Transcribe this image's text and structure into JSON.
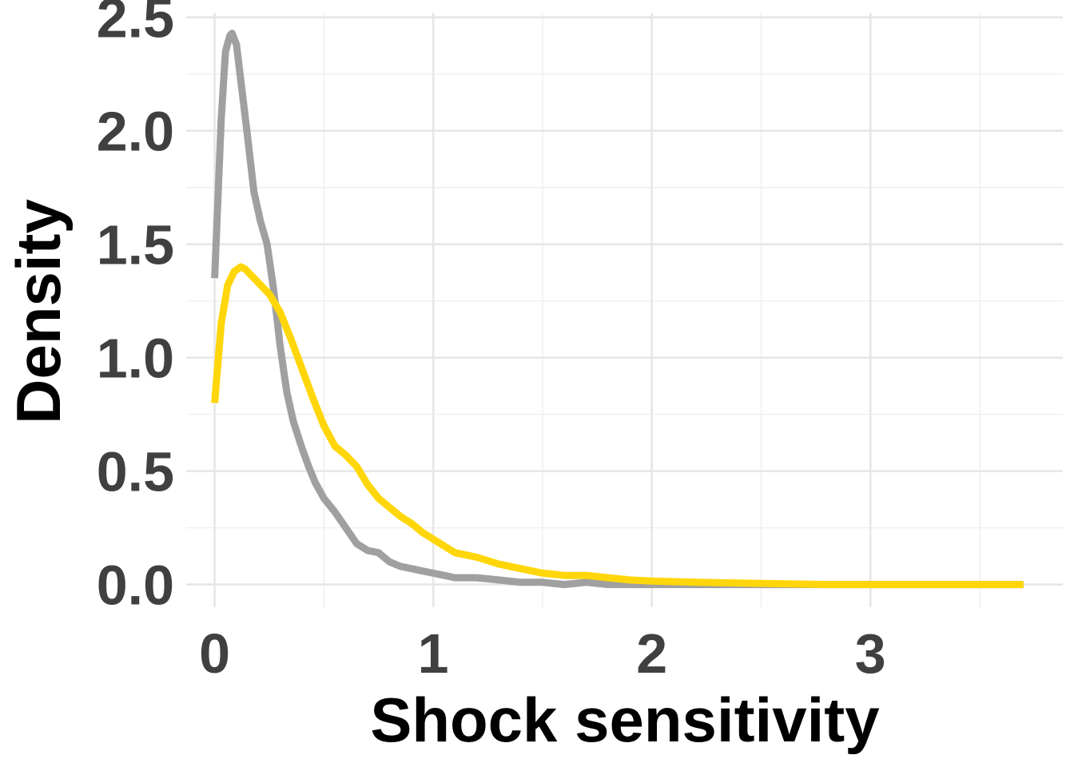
{
  "chart_data": {
    "type": "line",
    "title": "",
    "xlabel": "Shock sensitivity",
    "ylabel": "Density",
    "xlim": [
      -0.13,
      3.88
    ],
    "ylim": [
      -0.1,
      2.52
    ],
    "x_ticks": [
      0,
      1,
      2,
      3
    ],
    "x_tick_labels": [
      "0",
      "1",
      "2",
      "3"
    ],
    "x_minor_ticks": [
      0.5,
      1.5,
      2.5,
      3.5
    ],
    "y_ticks": [
      0.0,
      0.5,
      1.0,
      1.5,
      2.0,
      2.5
    ],
    "y_tick_labels": [
      "0.0",
      "0.5",
      "1.0",
      "1.5",
      "2.0",
      "2.5"
    ],
    "y_minor_ticks": [
      0.25,
      0.75,
      1.25,
      1.75,
      2.25
    ],
    "grid": true,
    "legend": "none",
    "series": [
      {
        "color": "#a0a0a0",
        "x": [
          0.0,
          0.03,
          0.05,
          0.07,
          0.08,
          0.1,
          0.12,
          0.15,
          0.18,
          0.21,
          0.24,
          0.27,
          0.3,
          0.33,
          0.36,
          0.4,
          0.43,
          0.46,
          0.5,
          0.55,
          0.6,
          0.65,
          0.7,
          0.75,
          0.8,
          0.85,
          0.9,
          0.95,
          1.0,
          1.05,
          1.1,
          1.2,
          1.3,
          1.4,
          1.5,
          1.6,
          1.7,
          1.8,
          2.0,
          2.2,
          2.5,
          2.8,
          3.1,
          3.4,
          3.7
        ],
        "y": [
          1.35,
          2.05,
          2.35,
          2.42,
          2.43,
          2.38,
          2.22,
          1.98,
          1.73,
          1.6,
          1.5,
          1.3,
          1.05,
          0.85,
          0.72,
          0.6,
          0.52,
          0.45,
          0.38,
          0.32,
          0.25,
          0.18,
          0.15,
          0.14,
          0.1,
          0.08,
          0.07,
          0.06,
          0.05,
          0.04,
          0.03,
          0.03,
          0.02,
          0.01,
          0.01,
          0.0,
          0.01,
          0.0,
          0.0,
          0.0,
          0.0,
          0.0,
          0.0,
          0.0,
          0.0
        ]
      },
      {
        "color": "#ffd60a",
        "x": [
          0.0,
          0.03,
          0.06,
          0.09,
          0.12,
          0.14,
          0.17,
          0.2,
          0.25,
          0.3,
          0.35,
          0.4,
          0.45,
          0.5,
          0.55,
          0.6,
          0.65,
          0.7,
          0.75,
          0.8,
          0.85,
          0.9,
          0.95,
          1.0,
          1.05,
          1.1,
          1.2,
          1.3,
          1.4,
          1.5,
          1.6,
          1.7,
          1.8,
          1.9,
          2.0,
          2.2,
          2.5,
          2.8,
          3.1,
          3.4,
          3.7
        ],
        "y": [
          0.8,
          1.15,
          1.32,
          1.38,
          1.4,
          1.39,
          1.36,
          1.33,
          1.28,
          1.2,
          1.08,
          0.95,
          0.82,
          0.7,
          0.61,
          0.57,
          0.52,
          0.44,
          0.38,
          0.34,
          0.3,
          0.27,
          0.23,
          0.2,
          0.17,
          0.14,
          0.12,
          0.09,
          0.07,
          0.05,
          0.04,
          0.04,
          0.03,
          0.02,
          0.015,
          0.01,
          0.005,
          0.0,
          0.0,
          0.0,
          0.0
        ]
      }
    ]
  }
}
